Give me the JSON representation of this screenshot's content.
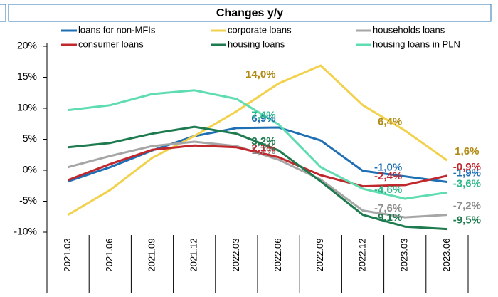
{
  "chart_data": {
    "type": "line",
    "title": "Changes y/y",
    "categories": [
      "2021.03",
      "2021.06",
      "2021.09",
      "2021.12",
      "2022.03",
      "2022.06",
      "2022.09",
      "2022.12",
      "2023.03",
      "2023.06"
    ],
    "ylim": [
      -10,
      20
    ],
    "yticks": [
      {
        "value": -10,
        "label": "-10%"
      },
      {
        "value": -5,
        "label": "-5%"
      },
      {
        "value": 0,
        "label": "0%"
      },
      {
        "value": 5,
        "label": "5%"
      },
      {
        "value": 10,
        "label": "10%"
      },
      {
        "value": 15,
        "label": "15%"
      },
      {
        "value": 20,
        "label": "20%"
      }
    ],
    "grid": false,
    "legend": "top",
    "series": [
      {
        "name": "loans for non-MFIs",
        "color": "#1f6fb5",
        "label_color": "#1f6fb5",
        "values": [
          -1.8,
          0.5,
          3.2,
          5.5,
          6.8,
          6.9,
          4.8,
          -0.1,
          -1.0,
          -1.9
        ],
        "value_labels": [
          null,
          null,
          null,
          null,
          null,
          "6,9%",
          null,
          null,
          "-1,0%",
          "-1,9%"
        ]
      },
      {
        "name": "corporate loans",
        "color": "#f2d14c",
        "label_color": "#b08a12",
        "values": [
          -7.2,
          -3.2,
          2.0,
          5.5,
          9.5,
          14.0,
          16.9,
          10.5,
          6.4,
          1.6
        ],
        "value_labels": [
          null,
          null,
          null,
          null,
          null,
          "14,0%",
          null,
          null,
          "6,4%",
          "1,6%"
        ]
      },
      {
        "name": "households loans",
        "color": "#a6a6a6",
        "label_color": "#8c8c8c",
        "values": [
          0.5,
          2.3,
          3.9,
          4.6,
          3.9,
          1.7,
          -1.5,
          -6.5,
          -7.6,
          -7.2
        ],
        "value_labels": [
          null,
          null,
          null,
          null,
          null,
          "1,7%",
          null,
          null,
          "-7,6%",
          "-7,2%"
        ]
      },
      {
        "name": "consumer loans",
        "color": "#c0282d",
        "label_color": "#c0282d",
        "values": [
          -1.6,
          1.0,
          3.3,
          4.0,
          3.7,
          2.1,
          -0.8,
          -2.6,
          -2.4,
          -0.9
        ],
        "value_labels": [
          null,
          null,
          null,
          null,
          null,
          "2,1%",
          null,
          null,
          "-2,4%",
          "-0,9%"
        ]
      },
      {
        "name": "housing loans",
        "color": "#1e7a4f",
        "label_color": "#1e7a4f",
        "values": [
          3.7,
          4.4,
          5.9,
          7.0,
          5.9,
          3.2,
          -1.8,
          -7.2,
          -9.1,
          -9.5
        ],
        "value_labels": [
          null,
          null,
          null,
          null,
          null,
          "3,2%",
          null,
          null,
          "-9,1%",
          "-9,5%"
        ]
      },
      {
        "name": "housing loans in PLN",
        "color": "#5fdcb0",
        "label_color": "#2fb88a",
        "values": [
          9.7,
          10.5,
          12.3,
          12.9,
          11.5,
          7.4,
          0.5,
          -3.0,
          -4.6,
          -3.6
        ],
        "value_labels": [
          null,
          null,
          null,
          null,
          null,
          "7,4%",
          null,
          null,
          "-4,6%",
          "-3,6%"
        ]
      }
    ]
  }
}
